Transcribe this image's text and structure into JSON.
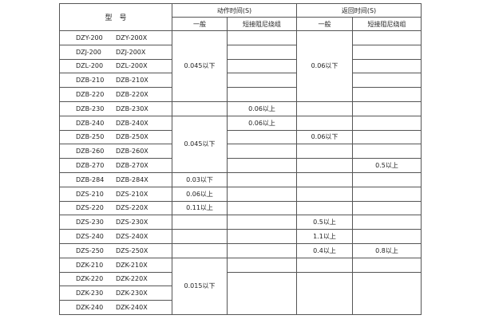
{
  "header": {
    "model": "型　号",
    "action_time": "动作时间(S)",
    "return_time": "返回时间(S)",
    "general": "一般",
    "short_winding": "短接阻尼绕组"
  },
  "rows": [
    {
      "model_a": "DZY-200",
      "model_b": "DZY-200X",
      "action_general": "0.045以下",
      "action_short": "",
      "return_general": "0.06以下",
      "return_short": ""
    },
    {
      "model_a": "DZJ-200",
      "model_b": "DZJ-200X",
      "action_short": "",
      "return_short": ""
    },
    {
      "model_a": "DZL-200",
      "model_b": "DZL-200X",
      "action_short": "",
      "return_short": ""
    },
    {
      "model_a": "DZB-210",
      "model_b": "DZB-210X",
      "action_short": "",
      "return_short": ""
    },
    {
      "model_a": "DZB-220",
      "model_b": "DZB-220X",
      "action_short": "",
      "return_short": ""
    },
    {
      "model_a": "DZB-230",
      "model_b": "DZB-230X",
      "action_general": "",
      "action_short": "0.06以上",
      "return_general": "",
      "return_short": ""
    },
    {
      "model_a": "DZB-240",
      "model_b": "DZB-240X",
      "action_general": "0.045以下",
      "action_short": "0.06以上",
      "return_general": "",
      "return_short": ""
    },
    {
      "model_a": "DZB-250",
      "model_b": "DZB-250X",
      "action_short": "",
      "return_general": "0.06以下",
      "return_short": ""
    },
    {
      "model_a": "DZB-260",
      "model_b": "DZB-260X",
      "action_short": "",
      "return_general": "",
      "return_short": ""
    },
    {
      "model_a": "DZB-270",
      "model_b": "DZB-270X",
      "action_short": "",
      "return_general": "",
      "return_short": "0.5以上"
    },
    {
      "model_a": "DZB-284",
      "model_b": "DZB-284X",
      "action_general": "0.03以下",
      "action_short": "",
      "return_general": "",
      "return_short": ""
    },
    {
      "model_a": "DZS-210",
      "model_b": "DZS-210X",
      "action_general": "0.06以上",
      "action_short": "",
      "return_general": "",
      "return_short": ""
    },
    {
      "model_a": "DZS-220",
      "model_b": "DZS-220X",
      "action_general": "0.11以上",
      "action_short": "",
      "return_general": "",
      "return_short": ""
    },
    {
      "model_a": "DZS-230",
      "model_b": "DZS-230X",
      "action_general": "",
      "action_short": "",
      "return_general": "0.5以上",
      "return_short": ""
    },
    {
      "model_a": "DZS-240",
      "model_b": "DZS-240X",
      "action_general": "",
      "action_short": "",
      "return_general": "1.1以上",
      "return_short": ""
    },
    {
      "model_a": "DZS-250",
      "model_b": "DZS-250X",
      "action_general": "",
      "action_short": "",
      "return_general": "0.4以上",
      "return_short": "0.8以上"
    },
    {
      "model_a": "DZK-210",
      "model_b": "DZK-210X",
      "action_general": "0.015以下",
      "action_short": "",
      "return_general": "",
      "return_short": ""
    },
    {
      "model_a": "DZK-220",
      "model_b": "DZK-220X",
      "action_short": "",
      "return_general": "",
      "return_short": ""
    },
    {
      "model_a": "DZK-230",
      "model_b": "DZK-230X"
    },
    {
      "model_a": "DZK-240",
      "model_b": "DZK-240X"
    }
  ]
}
